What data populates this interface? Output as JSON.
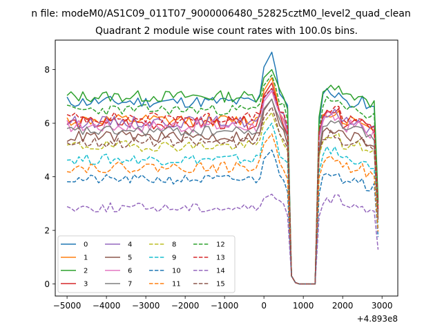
{
  "chart_data": {
    "type": "line",
    "suptitle": "n file: modeM0/AS1C09_011T07_9000006480_52825cztM0_level2_quad_clean",
    "title": "Quadrant 2 module wise count rates with 100.0s bins.",
    "xlabel": "",
    "ylabel": "",
    "x_offset_label": "+4.893e8",
    "xlim": [
      -5300,
      3400
    ],
    "ylim": [
      -0.45,
      9.1
    ],
    "xticks": [
      -5000,
      -4000,
      -3000,
      -2000,
      -1000,
      0,
      1000,
      2000,
      3000
    ],
    "xtick_labels": [
      "−5000",
      "−4000",
      "−3000",
      "−2000",
      "−1000",
      "0",
      "1000",
      "2000",
      "3000"
    ],
    "yticks": [
      0,
      2,
      4,
      6,
      8
    ],
    "ytick_labels": [
      "0",
      "2",
      "4",
      "6",
      "8"
    ],
    "x_start": -5000,
    "x_step": 100,
    "legend_position": "lower-left",
    "series": [
      {
        "name": "0",
        "color": "#1f77b4",
        "dash": "solid",
        "base": 6.8,
        "noise": 0.22,
        "boost": 0.35,
        "peak": 8.65
      },
      {
        "name": "1",
        "color": "#ff7f0e",
        "dash": "solid",
        "base": 6.1,
        "noise": 0.22,
        "boost": 0.3,
        "peak": 7.7
      },
      {
        "name": "2",
        "color": "#2ca02c",
        "dash": "solid",
        "base": 7.0,
        "noise": 0.22,
        "boost": 0.25,
        "peak": 8.0
      },
      {
        "name": "3",
        "color": "#d62728",
        "dash": "solid",
        "base": 6.0,
        "noise": 0.25,
        "boost": 0.3,
        "peak": 7.5
      },
      {
        "name": "4",
        "color": "#9467bd",
        "dash": "solid",
        "base": 6.05,
        "noise": 0.22,
        "boost": 0.3,
        "peak": 7.3
      },
      {
        "name": "5",
        "color": "#8c564b",
        "dash": "solid",
        "base": 5.5,
        "noise": 0.22,
        "boost": 0.3,
        "peak": 6.9
      },
      {
        "name": "6",
        "color": "#e377c2",
        "dash": "solid",
        "base": 5.9,
        "noise": 0.25,
        "boost": 0.3,
        "peak": 7.2
      },
      {
        "name": "7",
        "color": "#7f7f7f",
        "dash": "solid",
        "base": 5.7,
        "noise": 0.2,
        "boost": 0.3,
        "peak": 6.9
      },
      {
        "name": "8",
        "color": "#bcbd22",
        "dash": "dashed",
        "base": 5.15,
        "noise": 0.2,
        "boost": 0.3,
        "peak": 6.4
      },
      {
        "name": "9",
        "color": "#17becf",
        "dash": "dashed",
        "base": 4.65,
        "noise": 0.2,
        "boost": 0.3,
        "peak": 6.0
      },
      {
        "name": "10",
        "color": "#1f77b4",
        "dash": "dashed",
        "base": 3.9,
        "noise": 0.18,
        "boost": 0.3,
        "peak": 5.0
      },
      {
        "name": "11",
        "color": "#ff7f0e",
        "dash": "dashed",
        "base": 4.35,
        "noise": 0.2,
        "boost": 0.3,
        "peak": 5.6
      },
      {
        "name": "12",
        "color": "#2ca02c",
        "dash": "dashed",
        "base": 6.5,
        "noise": 0.2,
        "boost": 0.3,
        "peak": 7.8
      },
      {
        "name": "13",
        "color": "#d62728",
        "dash": "dashed",
        "base": 6.2,
        "noise": 0.22,
        "boost": 0.3,
        "peak": 7.3
      },
      {
        "name": "14",
        "color": "#9467bd",
        "dash": "dashed",
        "base": 2.85,
        "noise": 0.18,
        "boost": 0.3,
        "peak": 3.35
      },
      {
        "name": "15",
        "color": "#8c564b",
        "dash": "dashed",
        "base": 5.3,
        "noise": 0.22,
        "boost": 0.3,
        "peak": 6.6
      }
    ]
  }
}
